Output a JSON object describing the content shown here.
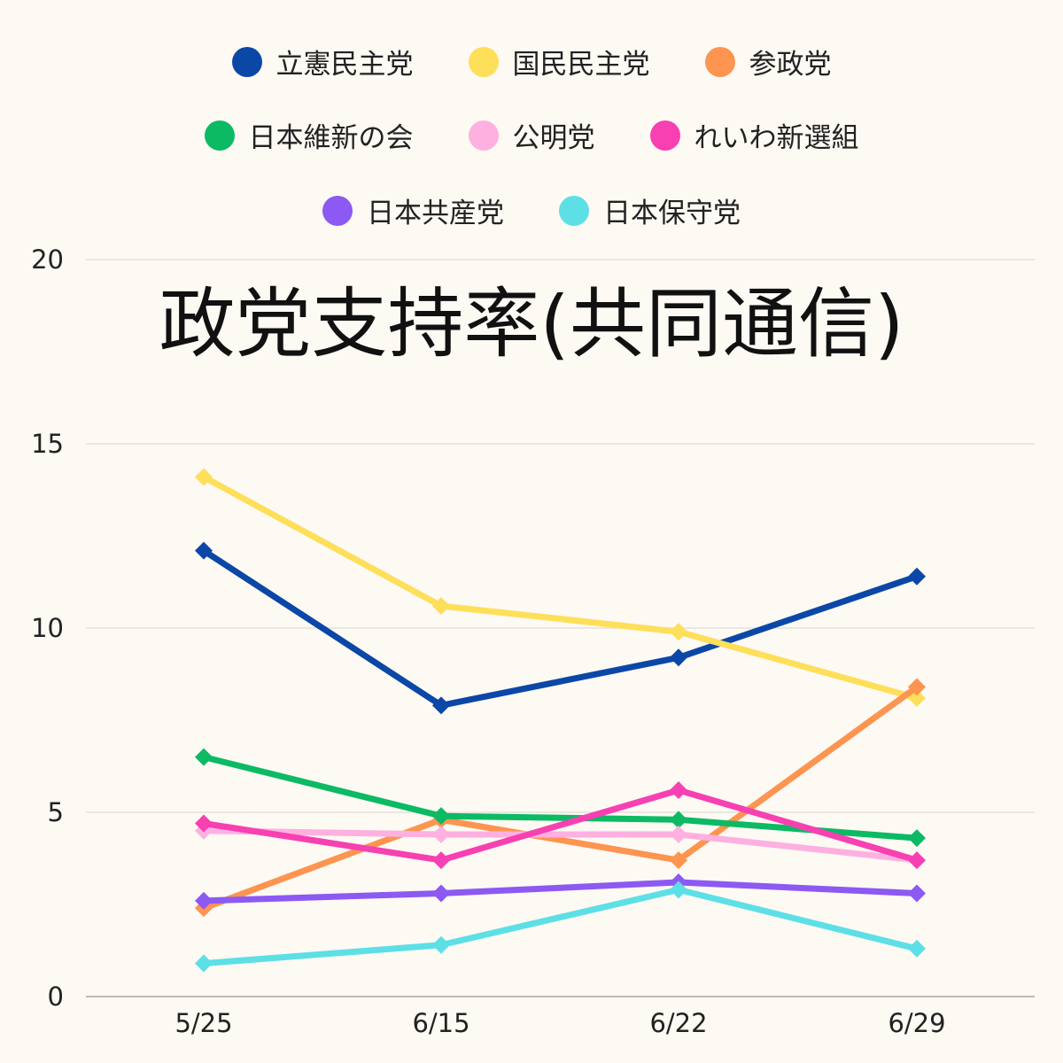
{
  "chart_data": {
    "type": "line",
    "title": "政党支持率(共同通信)",
    "xlabel": "",
    "ylabel": "",
    "categories": [
      "5/25",
      "6/15",
      "6/22",
      "6/29"
    ],
    "ylim": [
      0,
      20
    ],
    "yticks": [
      0,
      5,
      10,
      15,
      20
    ],
    "grid": true,
    "legend_position": "top",
    "series": [
      {
        "name": "立憲民主党",
        "color": "#0b47a7",
        "values": [
          12.1,
          7.9,
          9.2,
          11.4
        ]
      },
      {
        "name": "国民民主党",
        "color": "#fedf59",
        "values": [
          14.1,
          10.6,
          9.9,
          8.1
        ]
      },
      {
        "name": "参政党",
        "color": "#fd9450",
        "values": [
          2.4,
          4.8,
          3.7,
          8.4
        ]
      },
      {
        "name": "日本維新の会",
        "color": "#0cba63",
        "values": [
          6.5,
          4.9,
          4.8,
          4.3
        ]
      },
      {
        "name": "公明党",
        "color": "#feb0e0",
        "values": [
          4.5,
          4.4,
          4.4,
          3.7
        ]
      },
      {
        "name": "れいわ新選組",
        "color": "#f740b2",
        "values": [
          4.7,
          3.7,
          5.6,
          3.7
        ]
      },
      {
        "name": "日本共産党",
        "color": "#8c59f3",
        "values": [
          2.6,
          2.8,
          3.1,
          2.8
        ]
      },
      {
        "name": "日本保守党",
        "color": "#5ddfe6",
        "values": [
          0.9,
          1.4,
          2.9,
          1.3
        ]
      }
    ]
  }
}
